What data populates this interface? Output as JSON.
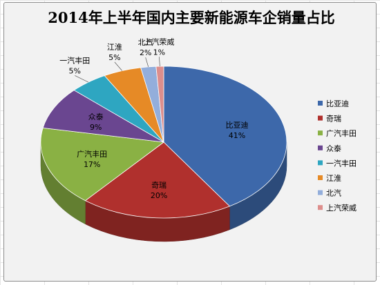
{
  "chart_data": {
    "type": "pie",
    "title": "2014年上半年国内主要新能源车企销量占比",
    "legend_position": "right",
    "style": "3d",
    "series": [
      {
        "name": "比亚迪",
        "value": 41,
        "label": "41%",
        "color": "#3d68aa"
      },
      {
        "name": "奇瑞",
        "value": 20,
        "label": "20%",
        "color": "#b0302d"
      },
      {
        "name": "广汽丰田",
        "value": 17,
        "label": "17%",
        "color": "#8ab144"
      },
      {
        "name": "众泰",
        "value": 9,
        "label": "9%",
        "color": "#6a4690"
      },
      {
        "name": "一汽丰田",
        "value": 5,
        "label": "5%",
        "color": "#2ea6c1"
      },
      {
        "name": "江淮",
        "value": 5,
        "label": "5%",
        "color": "#e68a26"
      },
      {
        "name": "北汽",
        "value": 2,
        "label": "2%",
        "color": "#93aedb"
      },
      {
        "name": "上汽荣威",
        "value": 1,
        "label": "1%",
        "color": "#dd8e8c"
      }
    ]
  }
}
